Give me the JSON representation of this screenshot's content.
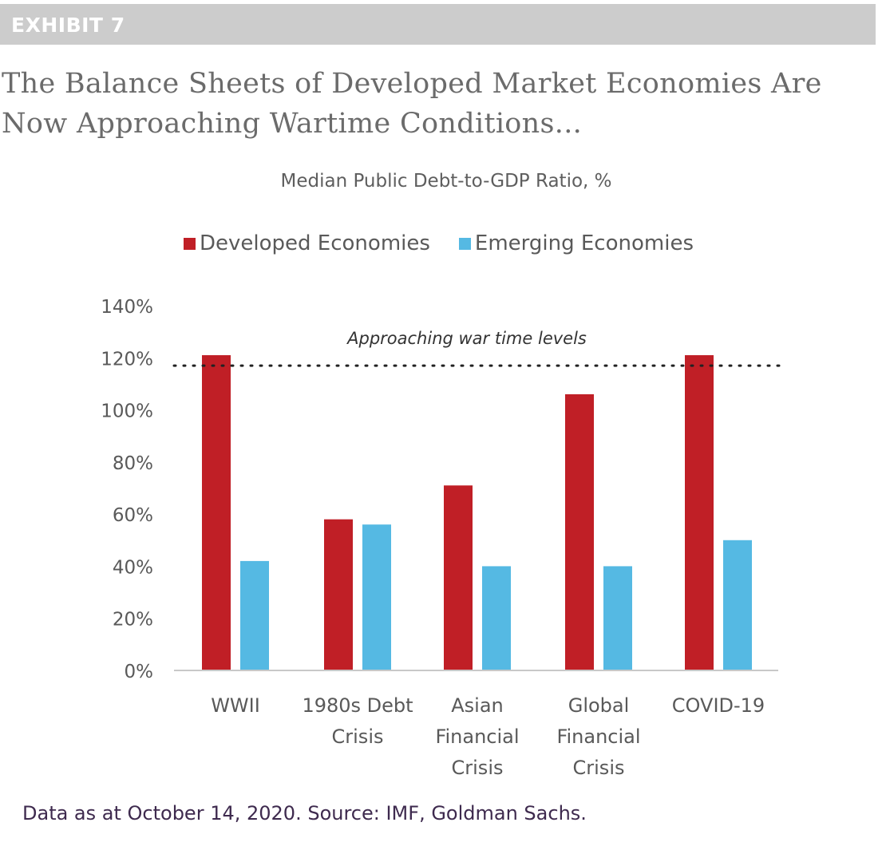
{
  "header": {
    "exhibit_label": "EXHIBIT 7",
    "title_line1": "The Balance Sheets of Developed Market Economies Are",
    "title_line2": "Now Approaching Wartime Conditions..."
  },
  "footer": {
    "source_note": "Data as at October 14, 2020. Source: IMF, Goldman Sachs."
  },
  "colors": {
    "developed": "#c01f26",
    "emerging": "#55b9e3",
    "header_bar": "#cccccc",
    "axis_line": "#c8c8c8",
    "reference_line": "#222222"
  },
  "chart_data": {
    "type": "bar",
    "title": "Median Public Debt-to-GDP Ratio, %",
    "xlabel": "",
    "ylabel": "",
    "ylim": [
      0,
      140
    ],
    "y_ticks": [
      0,
      20,
      40,
      60,
      80,
      100,
      120,
      140
    ],
    "y_tick_labels": [
      "0%",
      "20%",
      "40%",
      "60%",
      "80%",
      "100%",
      "120%",
      "140%"
    ],
    "grid": false,
    "legend_position": "top-center",
    "categories": [
      [
        "WWII"
      ],
      [
        "1980s Debt",
        "Crisis"
      ],
      [
        "Asian",
        "Financial",
        "Crisis"
      ],
      [
        "Global",
        "Financial",
        "Crisis"
      ],
      [
        "COVID-19"
      ]
    ],
    "series": [
      {
        "name": "Developed Economies",
        "color": "#c01f26",
        "values": [
          121,
          58,
          71,
          106,
          121
        ]
      },
      {
        "name": "Emerging Economies",
        "color": "#55b9e3",
        "values": [
          42,
          56,
          40,
          40,
          50
        ]
      }
    ],
    "annotations": [
      {
        "type": "horizontal-dotted-line",
        "y": 117,
        "label": "Approaching war time levels"
      }
    ]
  }
}
